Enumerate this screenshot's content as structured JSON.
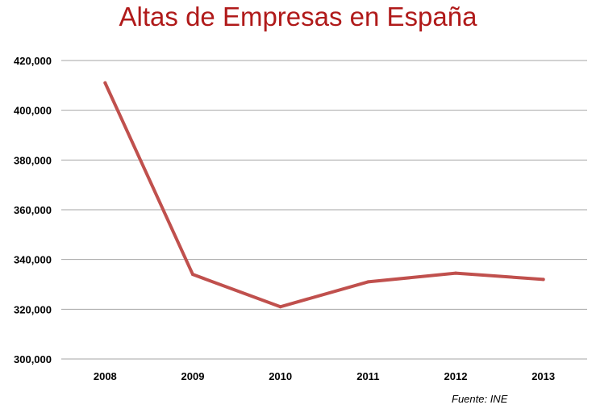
{
  "chart_data": {
    "type": "line",
    "title": "Altas de Empresas en España",
    "xlabel": "",
    "ylabel": "",
    "x": [
      "2008",
      "2009",
      "2010",
      "2011",
      "2012",
      "2013"
    ],
    "series": [
      {
        "values": [
          411000,
          334000,
          321000,
          331000,
          334500,
          332000
        ]
      }
    ],
    "ylim": [
      300000,
      420000
    ],
    "yticks": [
      "300,000",
      "320,000",
      "340,000",
      "360,000",
      "380,000",
      "400,000",
      "420,000"
    ],
    "grid": true,
    "legend": "none",
    "line_color": "#c0504d",
    "grid_color": "#a6a6a6"
  },
  "source_note": "Fuente: INE"
}
